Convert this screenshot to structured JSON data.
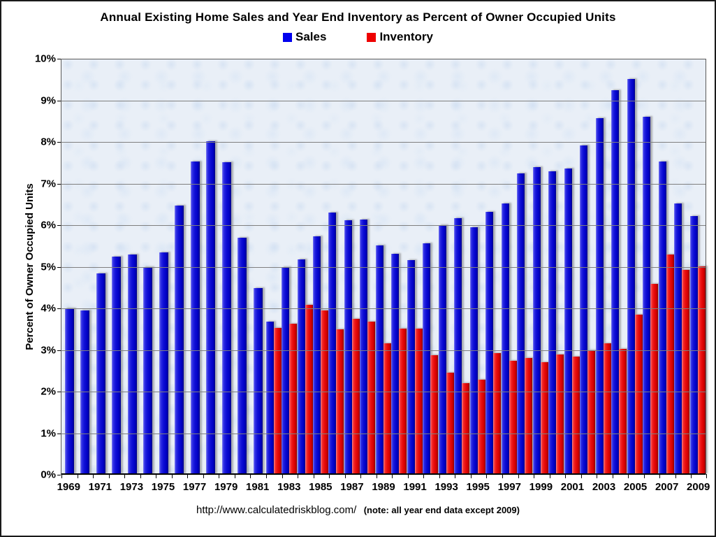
{
  "chart_data": {
    "type": "bar",
    "title": "Annual Existing Home Sales and Year End Inventory as Percent of Owner Occupied Units",
    "ylabel": "Percent of Owner Occupied Units",
    "xlabel": "",
    "footer_url": "http://www.calculatedriskblog.com/",
    "footer_note": "(note: all year end data except 2009)",
    "ylim": [
      0,
      10
    ],
    "ytick_step": 1,
    "ytick_suffix": "%",
    "grid": true,
    "legend_position": "top-center",
    "plot_background": "#e9eff7",
    "categories": [
      1969,
      1970,
      1971,
      1972,
      1973,
      1974,
      1975,
      1976,
      1977,
      1978,
      1979,
      1980,
      1981,
      1982,
      1983,
      1984,
      1985,
      1986,
      1987,
      1988,
      1989,
      1990,
      1991,
      1992,
      1993,
      1994,
      1995,
      1996,
      1997,
      1998,
      1999,
      2000,
      2001,
      2002,
      2003,
      2004,
      2005,
      2006,
      2007,
      2008,
      2009
    ],
    "x_tick_labels": [
      "1969",
      "1971",
      "1973",
      "1975",
      "1977",
      "1979",
      "1981",
      "1983",
      "1985",
      "1987",
      "1989",
      "1991",
      "1993",
      "1995",
      "1997",
      "1999",
      "2001",
      "2003",
      "2005",
      "2007",
      "2009"
    ],
    "series": [
      {
        "name": "Sales",
        "color": "#0000ee",
        "values": [
          3.98,
          3.94,
          4.83,
          5.22,
          5.27,
          4.98,
          5.33,
          6.45,
          7.52,
          8.0,
          7.5,
          5.68,
          4.47,
          3.66,
          4.97,
          5.16,
          5.72,
          6.28,
          6.1,
          6.12,
          5.5,
          5.3,
          5.15,
          5.55,
          5.98,
          6.15,
          5.94,
          6.31,
          6.51,
          7.23,
          7.38,
          7.28,
          7.34,
          7.9,
          8.56,
          9.22,
          9.49,
          8.59,
          7.51,
          6.5,
          6.21
        ]
      },
      {
        "name": "Inventory",
        "color": "#ee0000",
        "values": [
          null,
          null,
          null,
          null,
          null,
          null,
          null,
          null,
          null,
          null,
          null,
          null,
          null,
          3.52,
          3.62,
          4.06,
          3.93,
          3.48,
          3.73,
          3.67,
          3.14,
          3.49,
          3.49,
          2.85,
          2.43,
          2.18,
          2.27,
          2.9,
          2.73,
          2.79,
          2.69,
          2.87,
          2.83,
          2.97,
          3.15,
          3.01,
          3.83,
          4.58,
          5.28,
          4.91,
          5.0
        ]
      }
    ]
  }
}
